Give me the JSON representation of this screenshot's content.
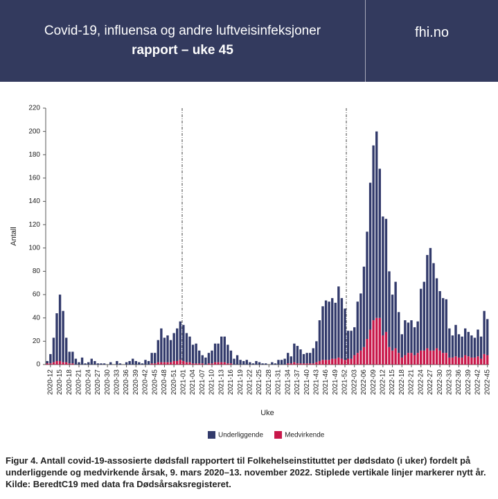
{
  "header": {
    "title": "Covid-19, influensa og andre luftveisinfeksjoner",
    "subtitle": "rapport – uke 45",
    "site": "fhi.no"
  },
  "chart_data": {
    "type": "stacked_bar",
    "caption": "Figur 4. Antall covid-19-assosierte dødsfall rapportert til Folkehelseinstituttet per dødsdato (i uker) fordelt på underliggende og medvirkende årsak, 9. mars 2020–13. november 2022. Stiplede vertikale linjer markerer nytt år. Kilde: BeredtC19 med data fra Dødsårsaksregisteret.",
    "xlabel": "Uke",
    "ylabel": "Antall",
    "ylim": [
      0,
      220
    ],
    "yticks": [
      0,
      20,
      40,
      60,
      80,
      100,
      120,
      140,
      160,
      180,
      200,
      220
    ],
    "legend": "bottom",
    "categories": [
      null,
      "2020-12",
      null,
      null,
      "2020-15",
      null,
      null,
      "2020-18",
      null,
      null,
      "2020-21",
      null,
      null,
      "2020-24",
      null,
      null,
      "2020-27",
      null,
      null,
      "2020-30",
      null,
      null,
      "2020-33",
      null,
      null,
      "2020-36",
      null,
      null,
      "2020-39",
      null,
      null,
      "2020-42",
      null,
      null,
      "2020-45",
      null,
      null,
      "2020-48",
      null,
      null,
      "2020-51",
      null,
      null,
      "2021-01",
      null,
      null,
      "2021-04",
      null,
      null,
      "2021-07",
      null,
      null,
      "2021-10",
      null,
      null,
      "2021-13",
      null,
      null,
      "2021-16",
      null,
      null,
      "2021-19",
      null,
      null,
      "2021-22",
      null,
      null,
      "2021-25",
      null,
      null,
      "2021-28",
      null,
      null,
      "2021-31",
      null,
      null,
      "2021-34",
      null,
      null,
      "2021-37",
      null,
      null,
      "2021-40",
      null,
      null,
      "2021-43",
      null,
      null,
      "2021-46",
      null,
      null,
      "2021-49",
      null,
      null,
      "2021-52",
      null,
      null,
      "2022-03",
      null,
      null,
      "2022-06",
      null,
      null,
      "2022-09",
      null,
      null,
      "2022-12",
      null,
      null,
      "2022-15",
      null,
      null,
      "2022-18",
      null,
      null,
      "2022-21",
      null,
      null,
      "2022-24",
      null,
      null,
      "2022-27",
      null,
      null,
      "2022-30",
      null,
      null,
      "2022-33",
      null,
      null,
      "2022-36",
      null,
      null,
      "2022-39",
      null,
      null,
      "2022-42",
      null,
      null,
      "2022-45"
    ],
    "series": [
      {
        "name": "Medvirkende",
        "color": "#c8174a",
        "values": [
          1,
          1,
          2,
          3,
          3,
          2,
          2,
          1,
          1,
          0,
          0,
          0,
          0,
          0,
          0,
          0,
          0,
          0,
          0,
          0,
          0,
          0,
          0,
          0,
          0,
          0,
          0,
          0,
          0,
          0,
          0,
          0,
          0,
          1,
          1,
          2,
          2,
          2,
          2,
          2,
          3,
          3,
          4,
          3,
          2,
          2,
          1,
          1,
          1,
          1,
          0,
          1,
          1,
          2,
          2,
          2,
          2,
          1,
          1,
          0,
          0,
          0,
          0,
          0,
          0,
          0,
          0,
          0,
          0,
          0,
          0,
          0,
          0,
          0,
          0,
          0,
          1,
          1,
          2,
          1,
          1,
          1,
          1,
          1,
          1,
          2,
          3,
          4,
          4,
          4,
          5,
          5,
          6,
          5,
          4,
          5,
          5,
          8,
          10,
          12,
          15,
          22,
          30,
          38,
          40,
          40,
          25,
          28,
          15,
          12,
          14,
          10,
          6,
          8,
          10,
          10,
          8,
          10,
          12,
          12,
          14,
          12,
          12,
          14,
          12,
          10,
          10,
          6,
          6,
          7,
          6,
          6,
          8,
          7,
          6,
          6,
          7,
          5,
          9,
          8
        ]
      },
      {
        "name": "Underliggende",
        "color": "#323a6b",
        "values": [
          2,
          8,
          21,
          41,
          57,
          44,
          21,
          10,
          10,
          5,
          2,
          6,
          1,
          2,
          5,
          3,
          1,
          1,
          1,
          0,
          2,
          0,
          3,
          1,
          0,
          2,
          3,
          5,
          3,
          2,
          1,
          4,
          3,
          9,
          9,
          19,
          29,
          21,
          23,
          19,
          24,
          28,
          33,
          31,
          25,
          22,
          16,
          17,
          11,
          7,
          6,
          9,
          11,
          16,
          16,
          22,
          22,
          16,
          11,
          5,
          8,
          4,
          3,
          4,
          2,
          1,
          3,
          2,
          1,
          1,
          0,
          2,
          1,
          4,
          4,
          5,
          9,
          6,
          16,
          15,
          12,
          8,
          9,
          9,
          13,
          18,
          35,
          46,
          51,
          50,
          52,
          48,
          61,
          52,
          44,
          24,
          24,
          24,
          44,
          49,
          69,
          92,
          126,
          150,
          160,
          128,
          102,
          97,
          65,
          48,
          57,
          35,
          20,
          30,
          26,
          28,
          24,
          27,
          53,
          59,
          80,
          88,
          75,
          60,
          51,
          47,
          46,
          25,
          19,
          27,
          20,
          18,
          23,
          21,
          19,
          17,
          23,
          19,
          37,
          31
        ]
      }
    ]
  }
}
